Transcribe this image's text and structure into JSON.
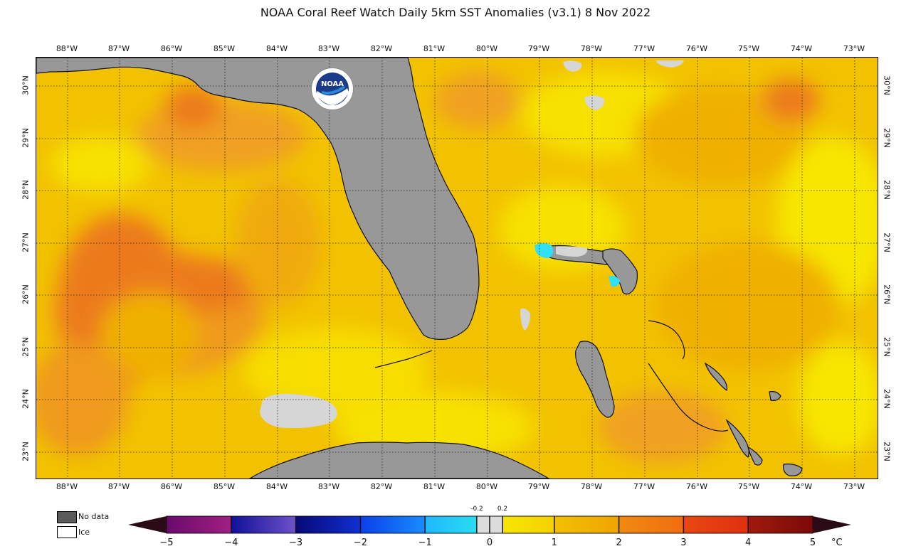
{
  "title": "NOAA Coral Reef Watch Daily 5km SST Anomalies  (v3.1)   8 Nov 2022",
  "map": {
    "lon_labels": [
      "88°W",
      "87°W",
      "86°W",
      "85°W",
      "84°W",
      "83°W",
      "82°W",
      "81°W",
      "80°W",
      "79°W",
      "78°W",
      "77°W",
      "76°W",
      "75°W",
      "74°W",
      "73°W"
    ],
    "lat_labels": [
      "30°N",
      "29°N",
      "28°N",
      "27°N",
      "26°N",
      "25°N",
      "24°N",
      "23°N"
    ],
    "logo_text": "NOAA"
  },
  "legend": {
    "no_data_label": "No data",
    "ice_label": "Ice",
    "no_data_color": "#5a5a5a",
    "ice_color": "#ffffff"
  },
  "colorbar": {
    "ticks": [
      "−5",
      "−4",
      "−3",
      "−2",
      "−1",
      "0",
      "1",
      "2",
      "3",
      "4",
      "5"
    ],
    "small_labels": [
      "-0.2",
      "0.2"
    ],
    "unit": "°C",
    "colors": {
      "min": "#2a0a14",
      "purple": "#6a0a6e",
      "violet": "#6e52c8",
      "navy": "#10109a",
      "blue": "#0a48ff",
      "cyan": "#28ddf0",
      "neutral": "#dcdcdc",
      "yellow": "#f7e600",
      "amber": "#f0a400",
      "orange": "#f06c10",
      "red": "#e03010",
      "darkred": "#7a0a08"
    }
  },
  "colors": {
    "land": "#989898",
    "sea_base": "#f2c200",
    "sea_warm": "#f0a020",
    "sea_hot": "#ec7a1a",
    "sea_light": "#f7e100",
    "no_data_sea": "#d6d6d6",
    "cold_patch": "#2fe0f6",
    "grid": "#222222"
  }
}
